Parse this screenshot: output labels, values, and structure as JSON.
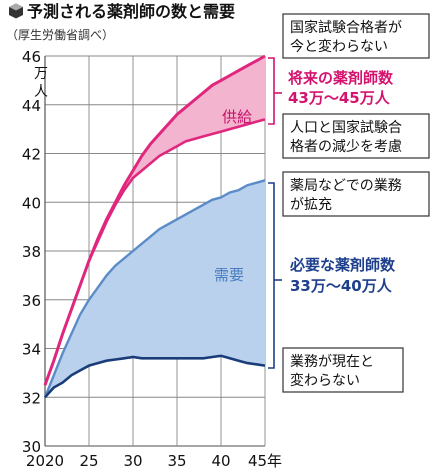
{
  "chart_data": {
    "type": "area",
    "title": "予測される薬剤師の数と需要",
    "subtitle": "（厚生労働省調べ）",
    "ylabel_unit": "万人",
    "x_ticks": [
      {
        "value": 2020,
        "label": "2020"
      },
      {
        "value": 2025,
        "label": "25"
      },
      {
        "value": 2030,
        "label": "30"
      },
      {
        "value": 2035,
        "label": "35"
      },
      {
        "value": 2040,
        "label": "40"
      },
      {
        "value": 2045,
        "label": "45年"
      }
    ],
    "y_ticks": [
      30,
      32,
      34,
      36,
      38,
      40,
      42,
      44,
      46
    ],
    "xlim": [
      2020,
      2045
    ],
    "ylim": [
      30,
      46
    ],
    "grid": true,
    "series": [
      {
        "key": "supply_high",
        "color": "#e0277e",
        "points": [
          [
            2020,
            32.5
          ],
          [
            2021,
            33.5
          ],
          [
            2022,
            34.6
          ],
          [
            2023,
            35.6
          ],
          [
            2024,
            36.6
          ],
          [
            2025,
            37.6
          ],
          [
            2026,
            38.5
          ],
          [
            2027,
            39.3
          ],
          [
            2028,
            40.0
          ],
          [
            2029,
            40.7
          ],
          [
            2030,
            41.3
          ],
          [
            2031,
            41.9
          ],
          [
            2032,
            42.4
          ],
          [
            2033,
            42.8
          ],
          [
            2034,
            43.2
          ],
          [
            2035,
            43.6
          ],
          [
            2036,
            43.9
          ],
          [
            2037,
            44.2
          ],
          [
            2038,
            44.5
          ],
          [
            2039,
            44.8
          ],
          [
            2040,
            45.0
          ],
          [
            2041,
            45.2
          ],
          [
            2042,
            45.4
          ],
          [
            2043,
            45.6
          ],
          [
            2044,
            45.8
          ],
          [
            2045,
            46.0
          ]
        ]
      },
      {
        "key": "supply_low",
        "color": "#e0277e",
        "points": [
          [
            2020,
            32.5
          ],
          [
            2021,
            33.5
          ],
          [
            2022,
            34.6
          ],
          [
            2023,
            35.6
          ],
          [
            2024,
            36.6
          ],
          [
            2025,
            37.6
          ],
          [
            2026,
            38.4
          ],
          [
            2027,
            39.2
          ],
          [
            2028,
            39.9
          ],
          [
            2029,
            40.5
          ],
          [
            2030,
            41.0
          ],
          [
            2031,
            41.3
          ],
          [
            2032,
            41.6
          ],
          [
            2033,
            41.9
          ],
          [
            2034,
            42.1
          ],
          [
            2035,
            42.3
          ],
          [
            2036,
            42.5
          ],
          [
            2037,
            42.6
          ],
          [
            2038,
            42.7
          ],
          [
            2039,
            42.8
          ],
          [
            2040,
            42.9
          ],
          [
            2041,
            43.0
          ],
          [
            2042,
            43.1
          ],
          [
            2043,
            43.2
          ],
          [
            2044,
            43.3
          ],
          [
            2045,
            43.4
          ]
        ]
      },
      {
        "key": "demand_high",
        "color": "#5b8cc8",
        "points": [
          [
            2020,
            32.0
          ],
          [
            2021,
            32.9
          ],
          [
            2022,
            33.8
          ],
          [
            2023,
            34.6
          ],
          [
            2024,
            35.4
          ],
          [
            2025,
            36.0
          ],
          [
            2026,
            36.5
          ],
          [
            2027,
            37.0
          ],
          [
            2028,
            37.4
          ],
          [
            2029,
            37.7
          ],
          [
            2030,
            38.0
          ],
          [
            2031,
            38.3
          ],
          [
            2032,
            38.6
          ],
          [
            2033,
            38.9
          ],
          [
            2034,
            39.1
          ],
          [
            2035,
            39.3
          ],
          [
            2036,
            39.5
          ],
          [
            2037,
            39.7
          ],
          [
            2038,
            39.9
          ],
          [
            2039,
            40.1
          ],
          [
            2040,
            40.2
          ],
          [
            2041,
            40.4
          ],
          [
            2042,
            40.5
          ],
          [
            2043,
            40.7
          ],
          [
            2044,
            40.8
          ],
          [
            2045,
            40.9
          ]
        ]
      },
      {
        "key": "demand_low",
        "color": "#1a3d7a",
        "points": [
          [
            2020,
            32.0
          ],
          [
            2021,
            32.4
          ],
          [
            2022,
            32.6
          ],
          [
            2023,
            32.9
          ],
          [
            2024,
            33.1
          ],
          [
            2025,
            33.3
          ],
          [
            2026,
            33.4
          ],
          [
            2027,
            33.5
          ],
          [
            2028,
            33.55
          ],
          [
            2029,
            33.6
          ],
          [
            2030,
            33.65
          ],
          [
            2031,
            33.6
          ],
          [
            2032,
            33.6
          ],
          [
            2033,
            33.6
          ],
          [
            2034,
            33.6
          ],
          [
            2035,
            33.6
          ],
          [
            2036,
            33.6
          ],
          [
            2037,
            33.6
          ],
          [
            2038,
            33.6
          ],
          [
            2039,
            33.65
          ],
          [
            2040,
            33.7
          ],
          [
            2041,
            33.6
          ],
          [
            2042,
            33.5
          ],
          [
            2043,
            33.4
          ],
          [
            2044,
            33.35
          ],
          [
            2045,
            33.3
          ]
        ]
      }
    ],
    "area_labels": {
      "supply": "供給",
      "demand": "需要"
    },
    "annotations": {
      "supply_high_box": [
        "国家試験合格者が",
        "今と変わらない"
      ],
      "supply_label": [
        "将来の薬剤師数",
        "43万〜45万人"
      ],
      "supply_low_box": [
        "人口と国家試験合",
        "格者の減少を考慮"
      ],
      "demand_high_box": [
        "薬局などでの業務",
        "が拡充"
      ],
      "demand_label": [
        "必要な薬剤師数",
        "33万〜40万人"
      ],
      "demand_low_box": [
        "業務が現在と",
        "変わらない"
      ]
    },
    "colors": {
      "supply_line": "#e0277e",
      "supply_fill": "#f3b4cf",
      "demand_fill": "#b9d1ec",
      "demand_high_line": "#5b8cc8",
      "demand_low_line": "#1a3d7a",
      "supply_text": "#d4136e",
      "demand_text": "#1e3f8c",
      "grid": "#888888"
    }
  }
}
